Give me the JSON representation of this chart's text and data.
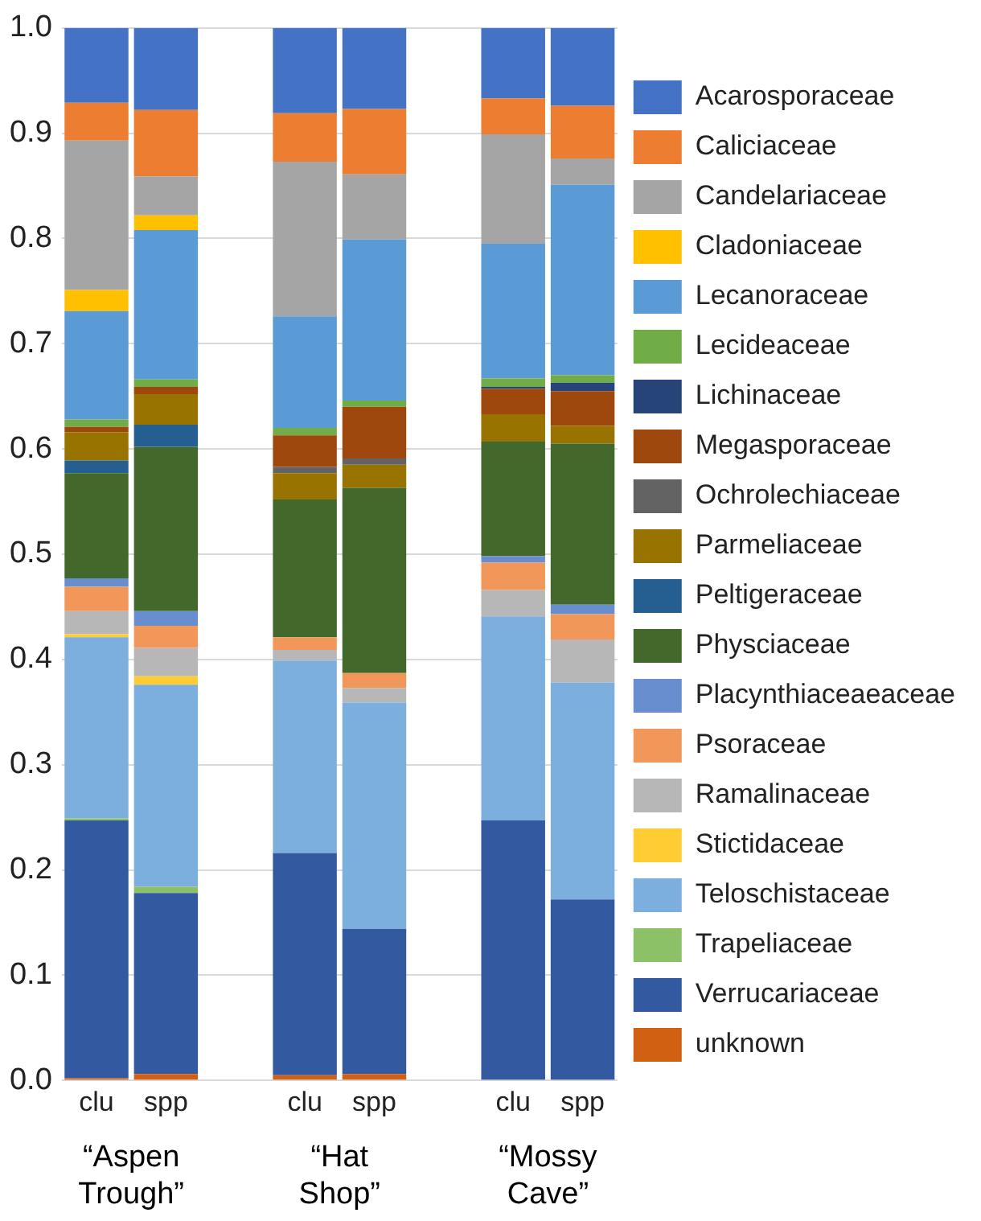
{
  "chart_data": {
    "type": "bar",
    "stacked": true,
    "categories": [
      "clu",
      "spp",
      null,
      "clu",
      "spp",
      null,
      "clu",
      "spp"
    ],
    "ylim": [
      0,
      1
    ],
    "yticks": [
      {
        "value": 0,
        "label": "0.0"
      },
      {
        "value": 0.1,
        "label": "0.1"
      },
      {
        "value": 0.2,
        "label": "0.2"
      },
      {
        "value": 0.3,
        "label": "0.3"
      },
      {
        "value": 0.4,
        "label": "0.4"
      },
      {
        "value": 0.5,
        "label": "0.5"
      },
      {
        "value": 0.6,
        "label": "0.6"
      },
      {
        "value": 0.7,
        "label": "0.7"
      },
      {
        "value": 0.8,
        "label": "0.8"
      },
      {
        "value": 0.9,
        "label": "0.9"
      },
      {
        "value": 1,
        "label": "1.0"
      }
    ],
    "grid": "y",
    "legend": "right",
    "annotations": [
      "“Aspen Trough”",
      "“Hat Shop”",
      "“Mossy Cave”"
    ],
    "series": [
      {
        "name": "unknown",
        "color": "#d26012",
        "values": [
          0.002,
          0.006,
          null,
          0.005,
          0.006,
          null,
          0,
          0
        ]
      },
      {
        "name": "Verrucariaceae",
        "color": "#335aa1",
        "values": [
          0.245,
          0.172,
          null,
          0.211,
          0.138,
          null,
          0.247,
          0.172
        ]
      },
      {
        "name": "Trapeliaceae",
        "color": "#8cc168",
        "values": [
          0.002,
          0.006,
          null,
          0,
          0,
          null,
          0,
          0
        ]
      },
      {
        "name": "Teloschistaceae",
        "color": "#7cafdd",
        "values": [
          0.172,
          0.192,
          null,
          0.183,
          0.215,
          null,
          0.194,
          0.206
        ]
      },
      {
        "name": "Stictidaceae",
        "color": "#ffcd33",
        "values": [
          0.003,
          0.008,
          null,
          0,
          0,
          null,
          0,
          0
        ]
      },
      {
        "name": "Ramalinaceae",
        "color": "#b7b7b7",
        "values": [
          0.022,
          0.027,
          null,
          0.01,
          0.014,
          null,
          0.025,
          0.041
        ]
      },
      {
        "name": "Psoraceae",
        "color": "#f1975a",
        "values": [
          0.023,
          0.021,
          null,
          0.012,
          0.014,
          null,
          0.026,
          0.024
        ]
      },
      {
        "name": "Placynthiaceaeaceae",
        "color": "#698ed0",
        "values": [
          0.008,
          0.014,
          null,
          0,
          0,
          null,
          0.006,
          0.009
        ]
      },
      {
        "name": "Physciaceae",
        "color": "#43682b",
        "values": [
          0.1,
          0.156,
          null,
          0.131,
          0.176,
          null,
          0.109,
          0.153
        ]
      },
      {
        "name": "Peltigeraceae",
        "color": "#255e91",
        "values": [
          0.012,
          0.021,
          null,
          0,
          0,
          null,
          0,
          0
        ]
      },
      {
        "name": "Parmeliaceae",
        "color": "#997300",
        "values": [
          0.027,
          0.029,
          null,
          0.025,
          0.022,
          null,
          0.026,
          0.017
        ]
      },
      {
        "name": "Ochrolechiaceae",
        "color": "#636363",
        "values": [
          0,
          0,
          null,
          0.006,
          0.006,
          null,
          0,
          0
        ]
      },
      {
        "name": "Megasporaceae",
        "color": "#9e480e",
        "values": [
          0.005,
          0.007,
          null,
          0.03,
          0.049,
          null,
          0.024,
          0.033
        ]
      },
      {
        "name": "Lichinaceae",
        "color": "#264478",
        "values": [
          0,
          0,
          null,
          0,
          0,
          null,
          0.002,
          0.008
        ]
      },
      {
        "name": "Lecideaceae",
        "color": "#70ad47",
        "values": [
          0.007,
          0.007,
          null,
          0.007,
          0.006,
          null,
          0.008,
          0.007
        ]
      },
      {
        "name": "Lecanoraceae",
        "color": "#5b9bd5",
        "values": [
          0.103,
          0.142,
          null,
          0.106,
          0.153,
          null,
          0.128,
          0.181
        ]
      },
      {
        "name": "Cladoniaceae",
        "color": "#ffc000",
        "values": [
          0.02,
          0.014,
          null,
          0,
          0,
          null,
          0,
          0
        ]
      },
      {
        "name": "Candelariaceae",
        "color": "#a5a5a5",
        "values": [
          0.142,
          0.037,
          null,
          0.147,
          0.062,
          null,
          0.104,
          0.025
        ]
      },
      {
        "name": "Caliciaceae",
        "color": "#ed7d31",
        "values": [
          0.036,
          0.063,
          null,
          0.046,
          0.062,
          null,
          0.034,
          0.05
        ]
      },
      {
        "name": "Acarosporaceae",
        "color": "#4472c4",
        "values": [
          0.071,
          0.078,
          null,
          0.081,
          0.077,
          null,
          0.067,
          0.074
        ]
      }
    ]
  }
}
